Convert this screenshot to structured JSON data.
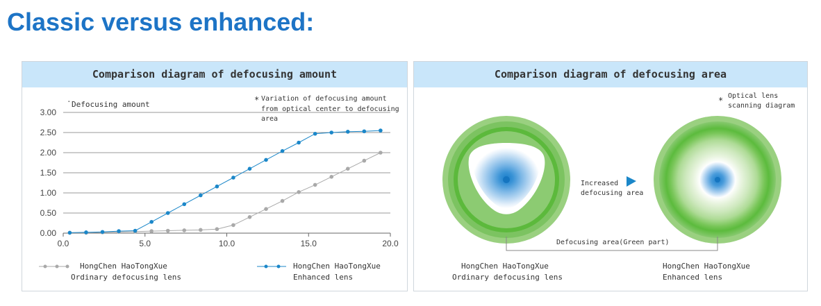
{
  "heading": "Classic versus enhanced:",
  "left_panel": {
    "title": "Comparison diagram of defocusing amount",
    "ylabel": "Defocusing amount",
    "note_mark": "*",
    "note_lines": [
      "Variation of defocusing amount",
      "from optical center to defocusing",
      "area"
    ],
    "legend": [
      {
        "line1": "HongChen  HaoTongXue",
        "line2": "Ordinary defocusing lens",
        "color": "#a9a9a9"
      },
      {
        "line1": "HongChen    HaoTongXue",
        "line2": "Enhanced lens",
        "color": "#1b87c9"
      }
    ]
  },
  "right_panel": {
    "title": "Comparison diagram of defocusing area",
    "note_mark": "*",
    "note_lines": [
      "Optical lens",
      "scanning diagram"
    ],
    "arrow_lines": [
      "Increased",
      "defocusing area"
    ],
    "area_label": "Defocusing area(Green part)",
    "left_caption": [
      "HongChen  HaoTongXue",
      "Ordinary defocusing lens"
    ],
    "right_caption": [
      "HongChen    HaoTongXue",
      "Enhanced lens"
    ]
  },
  "chart_data": {
    "type": "line",
    "ylabel": "Defocusing amount",
    "xlim": [
      0,
      20
    ],
    "ylim": [
      0,
      3
    ],
    "xticks": [
      "0.0",
      "5.0",
      "10.0",
      "15.0",
      "20.0"
    ],
    "yticks": [
      "0.00",
      "0.50",
      "1.00",
      "1.50",
      "2.00",
      "2.50",
      "3.00"
    ],
    "grid": "horizontal",
    "series": [
      {
        "name": "Ordinary defocusing lens",
        "color": "#a9a9a9",
        "x": [
          0.4,
          1.4,
          2.4,
          3.4,
          4.4,
          5.4,
          6.4,
          7.4,
          8.4,
          9.4,
          10.4,
          11.4,
          12.4,
          13.4,
          14.4,
          15.4,
          16.4,
          17.4,
          18.4,
          19.4
        ],
        "y": [
          0.01,
          0.01,
          0.02,
          0.03,
          0.04,
          0.05,
          0.06,
          0.07,
          0.08,
          0.1,
          0.2,
          0.4,
          0.6,
          0.8,
          1.02,
          1.2,
          1.4,
          1.6,
          1.8,
          2.0
        ]
      },
      {
        "name": "Enhanced lens",
        "color": "#1b87c9",
        "x": [
          0.4,
          1.4,
          2.4,
          3.4,
          4.4,
          5.4,
          6.4,
          7.4,
          8.4,
          9.4,
          10.4,
          11.4,
          12.4,
          13.4,
          14.4,
          15.4,
          16.4,
          17.4,
          18.4,
          19.4
        ],
        "y": [
          0.01,
          0.02,
          0.03,
          0.05,
          0.06,
          0.28,
          0.5,
          0.72,
          0.94,
          1.16,
          1.38,
          1.6,
          1.82,
          2.04,
          2.25,
          2.47,
          2.5,
          2.52,
          2.53,
          2.55
        ]
      }
    ]
  }
}
